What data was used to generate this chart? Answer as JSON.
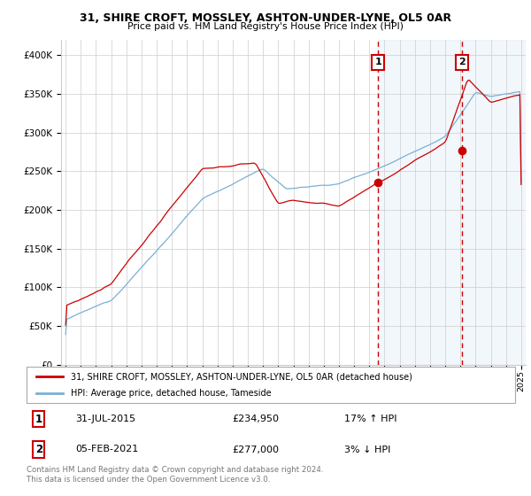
{
  "title1": "31, SHIRE CROFT, MOSSLEY, ASHTON-UNDER-LYNE, OL5 0AR",
  "title2": "Price paid vs. HM Land Registry's House Price Index (HPI)",
  "ylabel_ticks": [
    "£0",
    "£50K",
    "£100K",
    "£150K",
    "£200K",
    "£250K",
    "£300K",
    "£350K",
    "£400K"
  ],
  "ytick_vals": [
    0,
    50000,
    100000,
    150000,
    200000,
    250000,
    300000,
    350000,
    400000
  ],
  "ylim": [
    0,
    420000
  ],
  "xlim_start": 1994.7,
  "xlim_end": 2025.3,
  "event1_x": 2015.58,
  "event1_price": 234950,
  "event2_x": 2021.09,
  "event2_price": 277000,
  "legend_line1": "31, SHIRE CROFT, MOSSLEY, ASHTON-UNDER-LYNE, OL5 0AR (detached house)",
  "legend_line2": "HPI: Average price, detached house, Tameside",
  "table_row1_num": "1",
  "table_row1_date": "31-JUL-2015",
  "table_row1_price": "£234,950",
  "table_row1_hpi": "17% ↑ HPI",
  "table_row2_num": "2",
  "table_row2_date": "05-FEB-2021",
  "table_row2_price": "£277,000",
  "table_row2_hpi": "3% ↓ HPI",
  "footer": "Contains HM Land Registry data © Crown copyright and database right 2024.\nThis data is licensed under the Open Government Licence v3.0.",
  "sold_color": "#cc0000",
  "hpi_color": "#7ab0d4",
  "shade_color": "#ddeeff",
  "background_color": "#ffffff",
  "grid_color": "#cccccc"
}
